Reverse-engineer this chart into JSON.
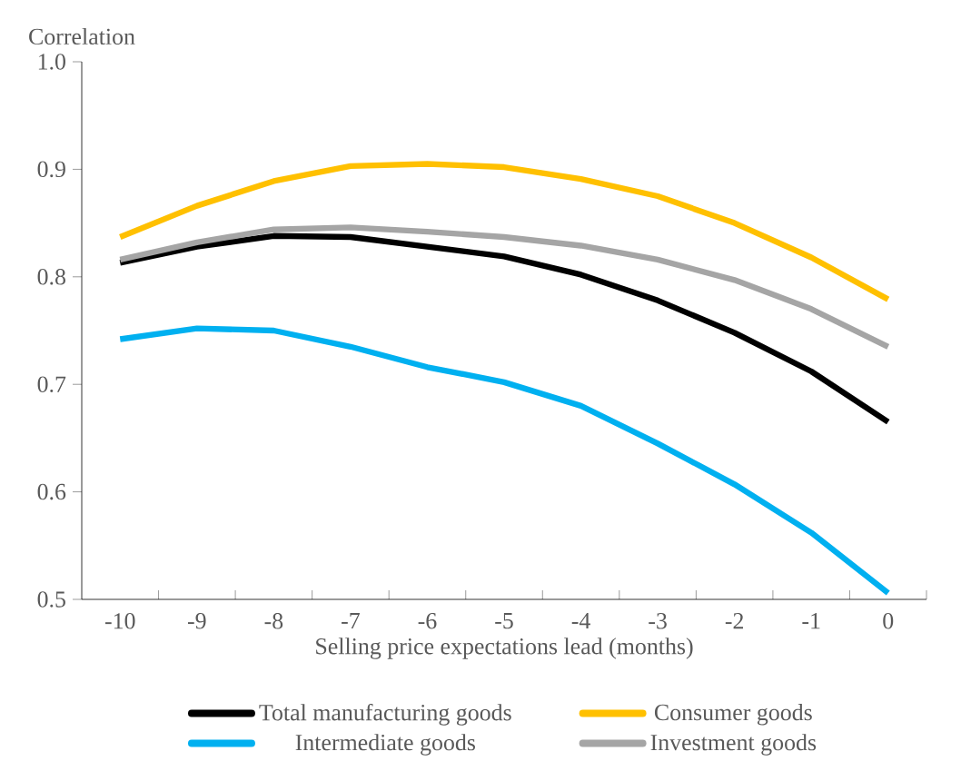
{
  "chart_data": {
    "type": "line",
    "ylabel": "Correlation",
    "xlabel": "Selling price expectations lead (months)",
    "categories": [
      "-10",
      "-9",
      "-8",
      "-7",
      "-6",
      "-5",
      "-4",
      "-3",
      "-2",
      "-1",
      "0"
    ],
    "ylim": [
      0.5,
      1.0
    ],
    "yticks": [
      {
        "value": 0.5,
        "label": "0.5"
      },
      {
        "value": 0.6,
        "label": "0.6"
      },
      {
        "value": 0.7,
        "label": "0.7"
      },
      {
        "value": 0.8,
        "label": "0.8"
      },
      {
        "value": 0.9,
        "label": "0.9"
      },
      {
        "value": 1.0,
        "label": "1.0"
      }
    ],
    "legend": "bottom",
    "grid": false,
    "series": [
      {
        "name": "Total manufacturing goods",
        "color": "#000000",
        "values": [
          0.813,
          0.828,
          0.838,
          0.837,
          0.828,
          0.819,
          0.802,
          0.778,
          0.748,
          0.712,
          0.665
        ]
      },
      {
        "name": "Consumer goods",
        "color": "#ffc000",
        "values": [
          0.837,
          0.866,
          0.889,
          0.903,
          0.905,
          0.902,
          0.891,
          0.875,
          0.85,
          0.818,
          0.779
        ]
      },
      {
        "name": "Intermediate goods",
        "color": "#00b0f0",
        "values": [
          0.742,
          0.752,
          0.75,
          0.735,
          0.716,
          0.702,
          0.68,
          0.645,
          0.607,
          0.562,
          0.506
        ]
      },
      {
        "name": "Investment goods",
        "color": "#a5a5a5",
        "values": [
          0.816,
          0.832,
          0.844,
          0.846,
          0.842,
          0.837,
          0.829,
          0.816,
          0.797,
          0.77,
          0.735
        ]
      }
    ]
  }
}
